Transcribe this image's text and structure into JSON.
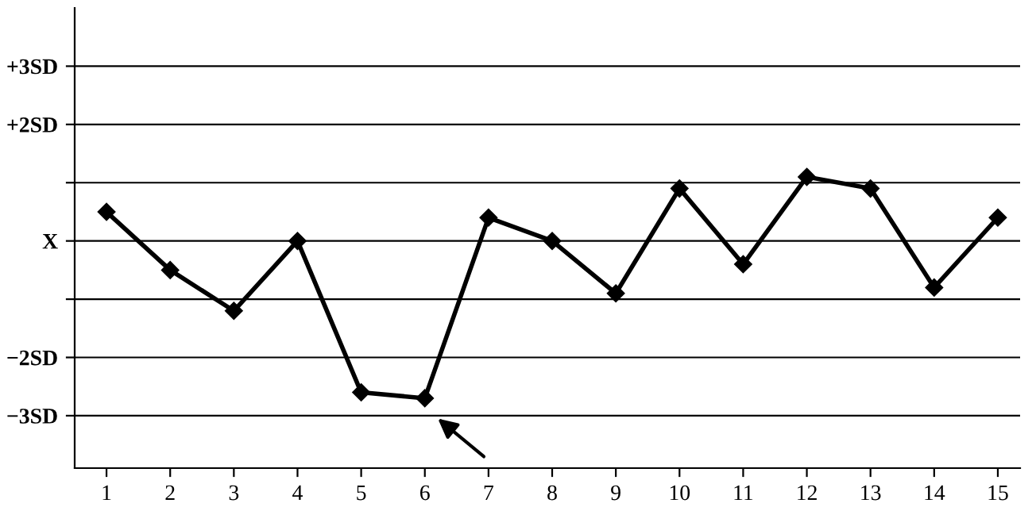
{
  "chart_data": {
    "type": "line",
    "x": [
      1,
      2,
      3,
      4,
      5,
      6,
      7,
      8,
      9,
      10,
      11,
      12,
      13,
      14,
      15
    ],
    "series": [
      {
        "color": "#000000",
        "values": [
          0.5,
          -0.5,
          -1.2,
          0,
          -2.6,
          -2.7,
          0.4,
          0,
          -0.9,
          0.9,
          -0.4,
          1.1,
          0.9,
          -0.8,
          0.4
        ]
      }
    ],
    "xlim": [
      0.5,
      15.35
    ],
    "xticks": [
      1,
      2,
      3,
      4,
      5,
      6,
      7,
      8,
      9,
      10,
      11,
      12,
      13,
      14,
      15
    ],
    "ylim": [
      -3.9,
      4.0
    ],
    "yticks": [
      {
        "value": 3,
        "label": "+3SD"
      },
      {
        "value": 2,
        "label": "+2SD"
      },
      {
        "value": 1,
        "label": null
      },
      {
        "value": 0,
        "label": "X"
      },
      {
        "value": -1,
        "label": null
      },
      {
        "value": -2,
        "label": "−2SD"
      },
      {
        "value": -3,
        "label": "−3SD"
      }
    ],
    "grid": "y",
    "marker": "diamond",
    "line_style": "solid"
  }
}
